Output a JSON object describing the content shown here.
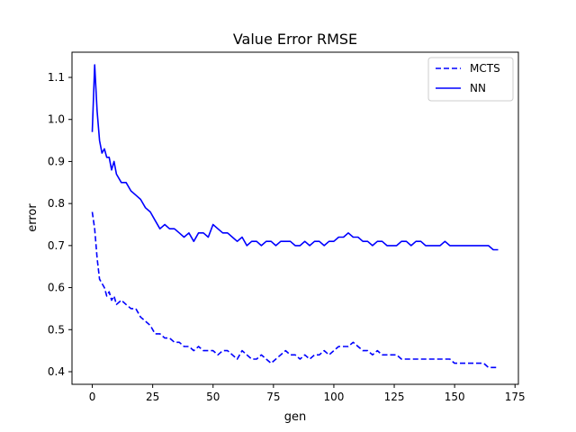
{
  "chart_data": {
    "type": "line",
    "title": "Value Error RMSE",
    "xlabel": "gen",
    "ylabel": "error",
    "xlim": [
      -8.4,
      176.4
    ],
    "ylim": [
      0.37,
      1.16
    ],
    "xticks": [
      0,
      25,
      50,
      75,
      100,
      125,
      150,
      175
    ],
    "yticks": [
      0.4,
      0.5,
      0.6,
      0.7,
      0.8,
      0.9,
      1.0,
      1.1
    ],
    "ytick_labels": [
      "0.4",
      "0.5",
      "0.6",
      "0.7",
      "0.8",
      "0.9",
      "1.0",
      "1.1"
    ],
    "grid": false,
    "legend": "top-right",
    "series": [
      {
        "name": "MCTS",
        "color": "#0000ff",
        "style": "dashed",
        "x": [
          0,
          1,
          2,
          3,
          4,
          5,
          6,
          7,
          8,
          9,
          10,
          12,
          14,
          16,
          18,
          20,
          22,
          24,
          26,
          28,
          30,
          32,
          34,
          36,
          38,
          40,
          42,
          44,
          46,
          48,
          50,
          52,
          54,
          56,
          58,
          60,
          62,
          64,
          66,
          68,
          70,
          72,
          74,
          76,
          78,
          80,
          82,
          84,
          86,
          88,
          90,
          92,
          94,
          96,
          98,
          100,
          102,
          104,
          106,
          108,
          110,
          112,
          114,
          116,
          118,
          120,
          122,
          124,
          126,
          128,
          130,
          132,
          134,
          136,
          138,
          140,
          142,
          144,
          146,
          148,
          150,
          152,
          154,
          156,
          158,
          160,
          162,
          164,
          166,
          168
        ],
        "values": [
          0.78,
          0.74,
          0.67,
          0.62,
          0.61,
          0.6,
          0.58,
          0.59,
          0.57,
          0.58,
          0.56,
          0.57,
          0.56,
          0.55,
          0.55,
          0.53,
          0.52,
          0.51,
          0.49,
          0.49,
          0.48,
          0.48,
          0.47,
          0.47,
          0.46,
          0.46,
          0.45,
          0.46,
          0.45,
          0.45,
          0.45,
          0.44,
          0.45,
          0.45,
          0.44,
          0.43,
          0.45,
          0.44,
          0.43,
          0.43,
          0.44,
          0.43,
          0.42,
          0.43,
          0.44,
          0.45,
          0.44,
          0.44,
          0.43,
          0.44,
          0.43,
          0.44,
          0.44,
          0.45,
          0.44,
          0.45,
          0.46,
          0.46,
          0.46,
          0.47,
          0.46,
          0.45,
          0.45,
          0.44,
          0.45,
          0.44,
          0.44,
          0.44,
          0.44,
          0.43,
          0.43,
          0.43,
          0.43,
          0.43,
          0.43,
          0.43,
          0.43,
          0.43,
          0.43,
          0.43,
          0.42,
          0.42,
          0.42,
          0.42,
          0.42,
          0.42,
          0.42,
          0.41,
          0.41,
          0.41
        ]
      },
      {
        "name": "NN",
        "color": "#0000ff",
        "style": "solid",
        "x": [
          0,
          1,
          2,
          3,
          4,
          5,
          6,
          7,
          8,
          9,
          10,
          12,
          14,
          16,
          18,
          20,
          22,
          24,
          26,
          28,
          30,
          32,
          34,
          36,
          38,
          40,
          42,
          44,
          46,
          48,
          50,
          52,
          54,
          56,
          58,
          60,
          62,
          64,
          66,
          68,
          70,
          72,
          74,
          76,
          78,
          80,
          82,
          84,
          86,
          88,
          90,
          92,
          94,
          96,
          98,
          100,
          102,
          104,
          106,
          108,
          110,
          112,
          114,
          116,
          118,
          120,
          122,
          124,
          126,
          128,
          130,
          132,
          134,
          136,
          138,
          140,
          142,
          144,
          146,
          148,
          150,
          152,
          154,
          156,
          158,
          160,
          162,
          164,
          166,
          168
        ],
        "values": [
          0.97,
          1.13,
          1.02,
          0.95,
          0.92,
          0.93,
          0.91,
          0.91,
          0.88,
          0.9,
          0.87,
          0.85,
          0.85,
          0.83,
          0.82,
          0.81,
          0.79,
          0.78,
          0.76,
          0.74,
          0.75,
          0.74,
          0.74,
          0.73,
          0.72,
          0.73,
          0.71,
          0.73,
          0.73,
          0.72,
          0.75,
          0.74,
          0.73,
          0.73,
          0.72,
          0.71,
          0.72,
          0.7,
          0.71,
          0.71,
          0.7,
          0.71,
          0.71,
          0.7,
          0.71,
          0.71,
          0.71,
          0.7,
          0.7,
          0.71,
          0.7,
          0.71,
          0.71,
          0.7,
          0.71,
          0.71,
          0.72,
          0.72,
          0.73,
          0.72,
          0.72,
          0.71,
          0.71,
          0.7,
          0.71,
          0.71,
          0.7,
          0.7,
          0.7,
          0.71,
          0.71,
          0.7,
          0.71,
          0.71,
          0.7,
          0.7,
          0.7,
          0.7,
          0.71,
          0.7,
          0.7,
          0.7,
          0.7,
          0.7,
          0.7,
          0.7,
          0.7,
          0.7,
          0.69,
          0.69
        ]
      }
    ]
  }
}
